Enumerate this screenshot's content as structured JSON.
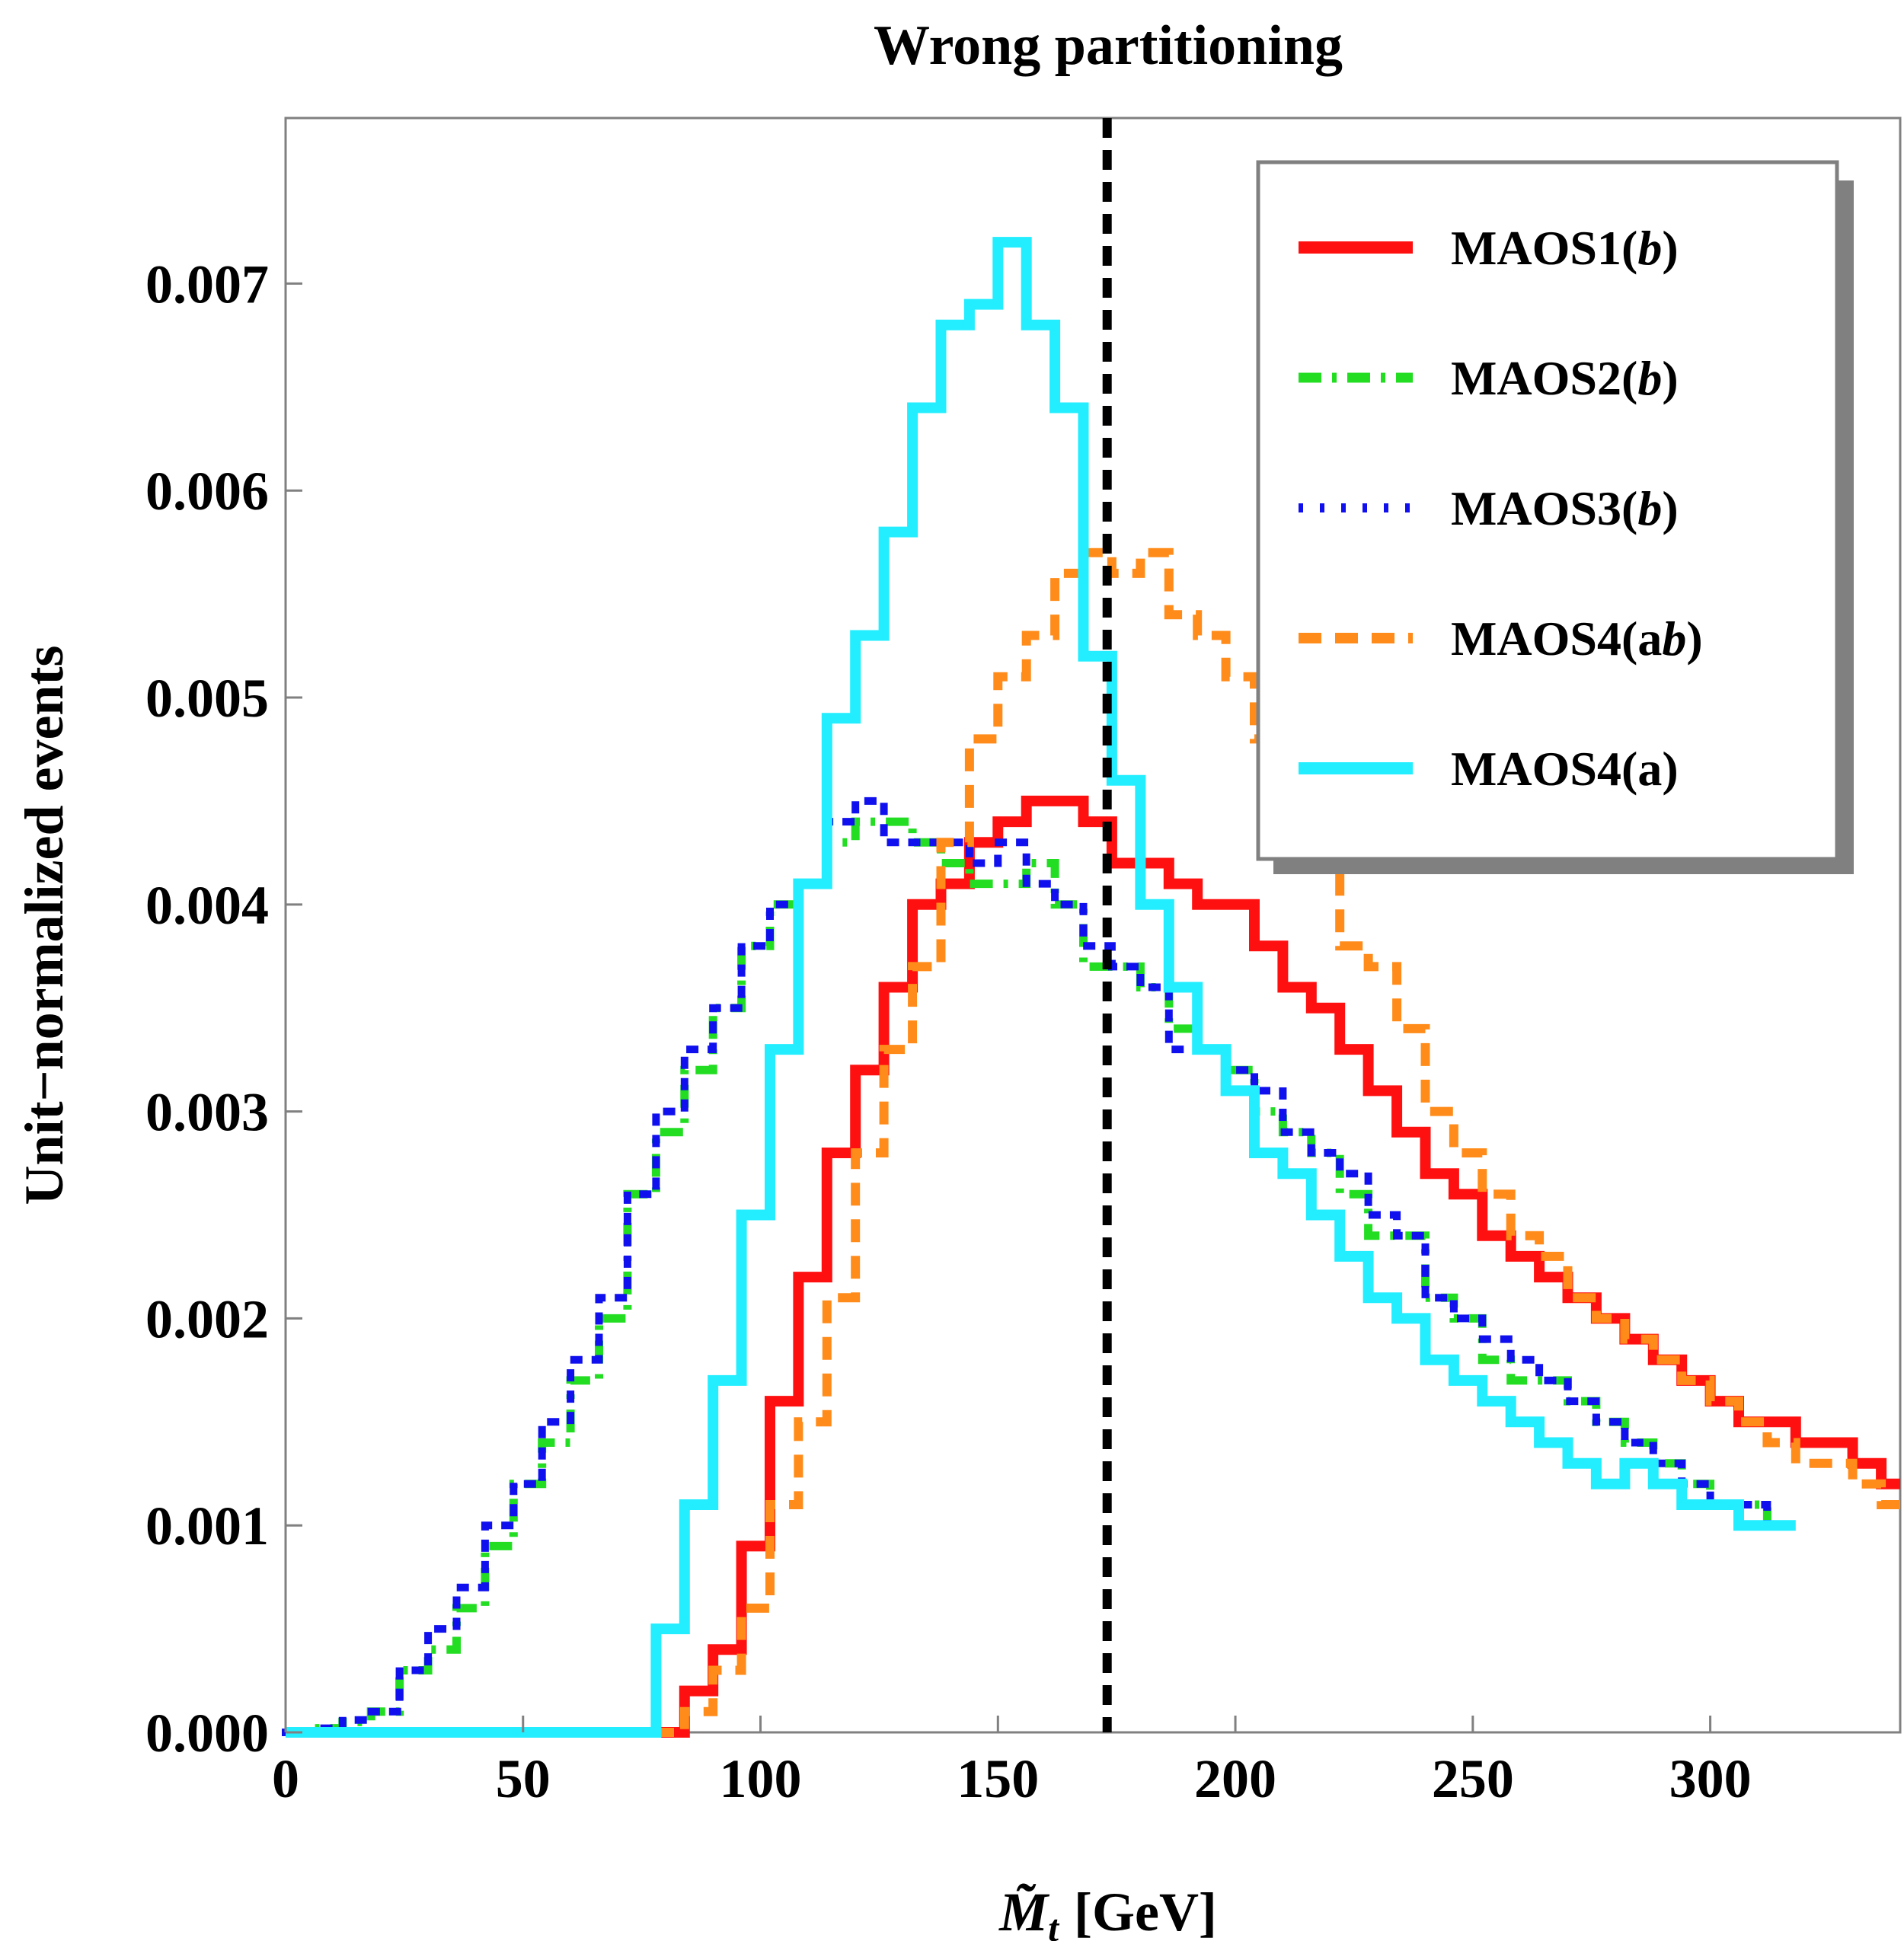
{
  "chart_data": {
    "type": "histogram-step",
    "title": "Wrong partitioning",
    "xlabel_symbol": "M̃",
    "xlabel_sub": "t",
    "xlabel_unit": "[GeV]",
    "ylabel": "Unit−normalized events",
    "xlim": [
      0,
      340
    ],
    "ylim": [
      0,
      0.0078
    ],
    "xticks": [
      0,
      50,
      100,
      150,
      200,
      250,
      300
    ],
    "xtick_labels": [
      "0",
      "50",
      "100",
      "150",
      "200",
      "250",
      "300"
    ],
    "yticks": [
      0,
      0.001,
      0.002,
      0.003,
      0.004,
      0.005,
      0.006,
      0.007
    ],
    "ytick_labels": [
      "0.000",
      "0.001",
      "0.002",
      "0.003",
      "0.004",
      "0.005",
      "0.006",
      "0.007"
    ],
    "reference_line_x": 173,
    "bin_width": 6,
    "legend_position": "top-right",
    "series": [
      {
        "name": "MAOS1(b)",
        "label_main": "MAOS1(",
        "label_italic": "b",
        "label_end": ")",
        "color": "#ff1010",
        "style": "solid",
        "values": [
          0,
          0,
          0,
          0,
          0,
          0,
          0,
          0,
          0,
          0,
          0,
          0,
          0,
          0,
          0.0002,
          0.0004,
          0.0009,
          0.0016,
          0.0022,
          0.0028,
          0.0032,
          0.0036,
          0.004,
          0.0041,
          0.0043,
          0.0044,
          0.0045,
          0.0045,
          0.0044,
          0.0042,
          0.0042,
          0.0041,
          0.004,
          0.004,
          0.0038,
          0.0036,
          0.0035,
          0.0033,
          0.0031,
          0.0029,
          0.0027,
          0.0026,
          0.0024,
          0.0023,
          0.0022,
          0.0021,
          0.002,
          0.0019,
          0.0018,
          0.0017,
          0.0016,
          0.0015,
          0.0015,
          0.0014,
          0.0014,
          0.0013,
          0.0012
        ]
      },
      {
        "name": "MAOS2(b)",
        "label_main": "MAOS2(",
        "label_italic": "b",
        "label_end": ")",
        "color": "#22dd22",
        "style": "dashdot",
        "values": [
          0,
          2e-05,
          5e-05,
          0.0001,
          0.0003,
          0.0004,
          0.0006,
          0.0009,
          0.0012,
          0.0014,
          0.0017,
          0.002,
          0.0026,
          0.0029,
          0.0032,
          0.0035,
          0.0038,
          0.004,
          0.0041,
          0.0043,
          0.0044,
          0.0044,
          0.0043,
          0.0042,
          0.0041,
          0.0041,
          0.0042,
          0.004,
          0.0037,
          0.0037,
          0.0036,
          0.0034,
          0.0033,
          0.0032,
          0.003,
          0.0029,
          0.0028,
          0.0026,
          0.0024,
          0.0024,
          0.0021,
          0.002,
          0.0018,
          0.0017,
          0.0017,
          0.0016,
          0.0015,
          0.0014,
          0.0013,
          0.0012,
          0.0011,
          0.0011,
          0.001
        ]
      },
      {
        "name": "MAOS3(b)",
        "label_main": "MAOS3(",
        "label_italic": "b",
        "label_end": ")",
        "color": "#1010ee",
        "style": "dotted",
        "values": [
          0,
          2e-05,
          6e-05,
          0.0001,
          0.0003,
          0.0005,
          0.0007,
          0.001,
          0.0012,
          0.0015,
          0.0018,
          0.0021,
          0.0026,
          0.003,
          0.0033,
          0.0035,
          0.0038,
          0.004,
          0.0041,
          0.0044,
          0.0045,
          0.0043,
          0.0043,
          0.0043,
          0.0042,
          0.0043,
          0.0041,
          0.004,
          0.0038,
          0.0037,
          0.0036,
          0.0033,
          0.0033,
          0.0032,
          0.0031,
          0.0029,
          0.0028,
          0.0027,
          0.0025,
          0.0024,
          0.0021,
          0.002,
          0.0019,
          0.0018,
          0.0017,
          0.0016,
          0.0015,
          0.0014,
          0.0013,
          0.0012,
          0.0011,
          0.0011,
          0.001
        ]
      },
      {
        "name": "MAOS4(ab)",
        "label_main": "MAOS4(a",
        "label_italic": "b",
        "label_end": ")",
        "color": "#ff8c1a",
        "style": "dashed",
        "values": [
          0,
          0,
          0,
          0,
          0,
          0,
          0,
          0,
          0,
          0,
          0,
          0,
          0,
          0,
          0.0001,
          0.0003,
          0.0006,
          0.0011,
          0.0015,
          0.0021,
          0.0028,
          0.0033,
          0.0037,
          0.0043,
          0.0048,
          0.0051,
          0.0053,
          0.0056,
          0.0057,
          0.0056,
          0.0057,
          0.0054,
          0.0053,
          0.0051,
          0.0048,
          0.0045,
          0.0042,
          0.0038,
          0.0037,
          0.0034,
          0.003,
          0.0028,
          0.0026,
          0.0024,
          0.0023,
          0.0021,
          0.002,
          0.0019,
          0.0018,
          0.0017,
          0.0016,
          0.0015,
          0.0014,
          0.0013,
          0.0013,
          0.0012,
          0.0011
        ]
      },
      {
        "name": "MAOS4(a)",
        "label_main": "MAOS4(a)",
        "label_italic": "",
        "label_end": "",
        "color": "#22eeff",
        "style": "solid",
        "values": [
          0,
          0,
          0,
          0,
          0,
          0,
          0,
          0,
          0,
          0,
          0,
          0,
          0,
          0.0005,
          0.0011,
          0.0017,
          0.0025,
          0.0033,
          0.0041,
          0.0049,
          0.0053,
          0.0058,
          0.0064,
          0.0068,
          0.0069,
          0.0072,
          0.0068,
          0.0064,
          0.0052,
          0.0046,
          0.004,
          0.0036,
          0.0033,
          0.0031,
          0.0028,
          0.0027,
          0.0025,
          0.0023,
          0.0021,
          0.002,
          0.0018,
          0.0017,
          0.0016,
          0.0015,
          0.0014,
          0.0013,
          0.0012,
          0.0013,
          0.0012,
          0.0011,
          0.0011,
          0.001,
          0.001
        ]
      }
    ]
  }
}
